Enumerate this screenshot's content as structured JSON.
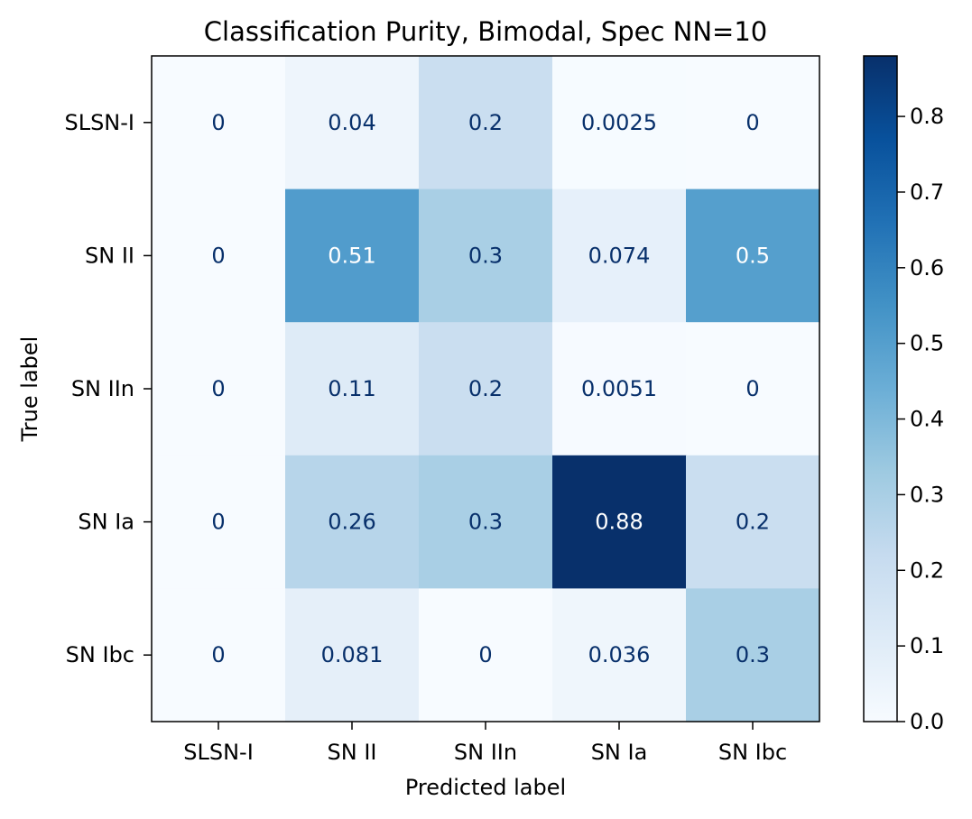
{
  "chart_data": {
    "type": "heatmap",
    "title": "Classification Purity, Bimodal, Spec NN=10",
    "xlabel": "Predicted label",
    "ylabel": "True label",
    "x_categories": [
      "SLSN-I",
      "SN II",
      "SN IIn",
      "SN Ia",
      "SN Ibc"
    ],
    "y_categories": [
      "SLSN-I",
      "SN II",
      "SN IIn",
      "SN Ia",
      "SN Ibc"
    ],
    "values": [
      [
        0,
        0.04,
        0.2,
        0.0025,
        0
      ],
      [
        0,
        0.51,
        0.3,
        0.074,
        0.5
      ],
      [
        0,
        0.11,
        0.2,
        0.0051,
        0
      ],
      [
        0,
        0.26,
        0.3,
        0.88,
        0.2
      ],
      [
        0,
        0.081,
        0,
        0.036,
        0.3
      ]
    ],
    "cell_labels": [
      [
        "0",
        "0.04",
        "0.2",
        "0.0025",
        "0"
      ],
      [
        "0",
        "0.51",
        "0.3",
        "0.074",
        "0.5"
      ],
      [
        "0",
        "0.11",
        "0.2",
        "0.0051",
        "0"
      ],
      [
        "0",
        "0.26",
        "0.3",
        "0.88",
        "0.2"
      ],
      [
        "0",
        "0.081",
        "0",
        "0.036",
        "0.3"
      ]
    ],
    "colormap": "Blues",
    "vmin": 0,
    "vmax": 0.88,
    "colorbar_ticks": [
      "0.0",
      "0.1",
      "0.2",
      "0.3",
      "0.4",
      "0.5",
      "0.6",
      "0.7",
      "0.8"
    ],
    "colorbar_tick_values": [
      0,
      0.1,
      0.2,
      0.3,
      0.4,
      0.5,
      0.6,
      0.7,
      0.8
    ],
    "text_colors": {
      "light": "#ffffff",
      "dark": "#08306b"
    }
  }
}
